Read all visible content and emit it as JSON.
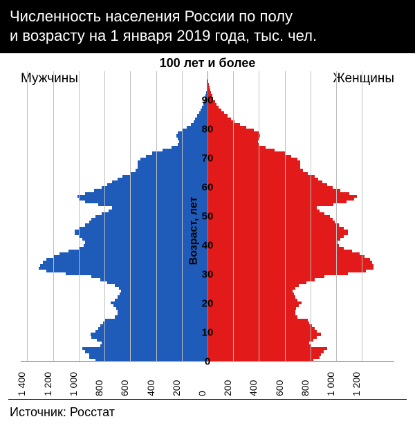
{
  "title_line1": "Численность населения России по полу",
  "title_line2": "и возрасту на 1 января 2019 года, тыс. чел.",
  "top_label": "100 лет и более",
  "label_men": "Мужчины",
  "label_women": "Женщины",
  "y_axis_label": "Возраст, лет",
  "source": "Источник: Росстат",
  "chart": {
    "type": "population-pyramid",
    "color_men": "#1f5bb8",
    "color_women": "#e21a1a",
    "grid_color": "#bfbfbf",
    "background": "#ffffff",
    "x_max": 1450,
    "x_ticks_left": [
      1400,
      1200,
      1000,
      800,
      600,
      400,
      200,
      0
    ],
    "x_ticks_right": [
      200,
      400,
      600,
      800,
      1000,
      1200
    ],
    "x_tick_labels_left": [
      "1 400",
      "1 200",
      "1 000",
      "800",
      "600",
      "400",
      "200",
      "0"
    ],
    "x_tick_labels_right": [
      "200",
      "400",
      "600",
      "800",
      "1 000",
      "1 200"
    ],
    "y_ticks": [
      0,
      10,
      20,
      30,
      40,
      50,
      60,
      70,
      80,
      90
    ],
    "age_max": 100,
    "men": [
      870,
      920,
      920,
      950,
      970,
      830,
      820,
      860,
      900,
      910,
      870,
      850,
      830,
      810,
      800,
      720,
      700,
      700,
      710,
      730,
      750,
      720,
      700,
      680,
      670,
      690,
      720,
      780,
      830,
      900,
      1100,
      1250,
      1310,
      1300,
      1280,
      1250,
      1200,
      1150,
      1080,
      1000,
      960,
      950,
      970,
      1000,
      1030,
      1030,
      1000,
      950,
      920,
      900,
      870,
      820,
      770,
      740,
      850,
      950,
      1000,
      1010,
      950,
      880,
      820,
      780,
      740,
      700,
      660,
      600,
      560,
      540,
      540,
      540,
      520,
      480,
      430,
      350,
      280,
      230,
      220,
      230,
      240,
      230,
      200,
      160,
      130,
      110,
      95,
      80,
      65,
      52,
      42,
      34,
      26,
      20,
      15,
      11,
      8,
      6,
      4,
      3,
      2,
      1,
      0
    ],
    "women": [
      820,
      870,
      880,
      900,
      930,
      800,
      790,
      820,
      850,
      880,
      850,
      830,
      810,
      790,
      780,
      700,
      680,
      680,
      690,
      710,
      730,
      700,
      680,
      670,
      660,
      680,
      710,
      770,
      830,
      910,
      1090,
      1230,
      1290,
      1290,
      1280,
      1260,
      1220,
      1180,
      1120,
      1060,
      1020,
      1010,
      1030,
      1060,
      1090,
      1090,
      1060,
      1020,
      990,
      970,
      950,
      910,
      870,
      850,
      980,
      1080,
      1140,
      1160,
      1100,
      1030,
      970,
      930,
      890,
      860,
      830,
      780,
      740,
      720,
      720,
      720,
      700,
      650,
      600,
      520,
      450,
      400,
      390,
      400,
      410,
      400,
      360,
      300,
      250,
      210,
      180,
      155,
      130,
      108,
      88,
      72,
      58,
      45,
      35,
      26,
      19,
      14,
      10,
      7,
      4,
      2,
      1
    ]
  }
}
